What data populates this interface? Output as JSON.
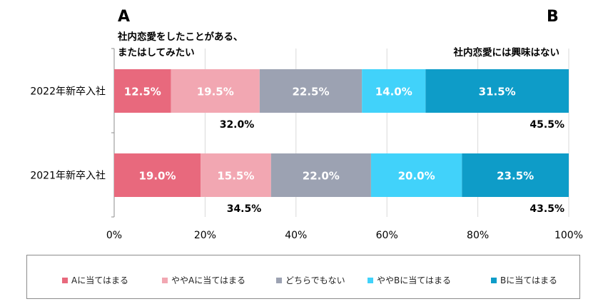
{
  "header": {
    "a_letter": "A",
    "b_letter": "B",
    "a_text_line1": "社内恋愛をしたことがある、",
    "a_text_line2": "またはしてみたい",
    "b_text": "社内恋愛には興味はない"
  },
  "chart_data": {
    "type": "bar",
    "orientation": "horizontal",
    "stacked": true,
    "categories": [
      "2022年新卒入社",
      "2021年新卒入社"
    ],
    "series": [
      {
        "name": "Aに当てはまる",
        "values": [
          12.5,
          19.0
        ],
        "color": "#e8697d"
      },
      {
        "name": "ややAに当てはまる",
        "values": [
          19.5,
          15.5
        ],
        "color": "#f2a7b2"
      },
      {
        "name": "どちらでもない",
        "values": [
          22.5,
          22.0
        ],
        "color": "#9ca2b2"
      },
      {
        "name": "ややBに当てはまる",
        "values": [
          14.0,
          20.0
        ],
        "color": "#41d2fa"
      },
      {
        "name": "Bに当てはまる",
        "values": [
          31.5,
          23.5
        ],
        "color": "#0e9cc8"
      }
    ],
    "segment_labels": [
      [
        "12.5%",
        "19.5%",
        "22.5%",
        "14.0%",
        "31.5%"
      ],
      [
        "19.0%",
        "15.5%",
        "22.0%",
        "20.0%",
        "23.5%"
      ]
    ],
    "group_totals": {
      "a_side": [
        "32.0%",
        "34.5%"
      ],
      "b_side": [
        "45.5%",
        "43.5%"
      ]
    },
    "xlim": [
      0,
      100
    ],
    "x_ticks": [
      "0%",
      "20%",
      "40%",
      "60%",
      "80%",
      "100%"
    ],
    "grid": true,
    "legend_position": "bottom"
  },
  "colors": {
    "axis": "#8c8c8c",
    "grid": "#d9d9d9"
  }
}
